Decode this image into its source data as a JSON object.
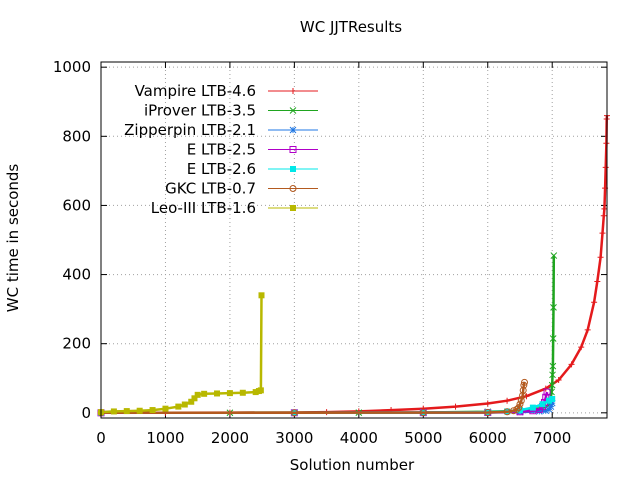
{
  "chart_data": {
    "type": "line",
    "title": "WC JJTResults",
    "xlabel": "Solution number",
    "ylabel": "WC time in seconds",
    "xlim": [
      0,
      7850
    ],
    "ylim": [
      -15,
      1015
    ],
    "xticks": [
      0,
      1000,
      2000,
      3000,
      4000,
      5000,
      6000,
      7000
    ],
    "yticks": [
      0,
      200,
      400,
      600,
      800,
      1000
    ],
    "grid": true,
    "legend_position": "top-left",
    "series": [
      {
        "name": "Vampire LTB-4.6",
        "color": "#e41a1c",
        "marker": "plus",
        "points": [
          [
            0,
            0
          ],
          [
            1000,
            0.2
          ],
          [
            2000,
            0.5
          ],
          [
            3000,
            1
          ],
          [
            3500,
            2
          ],
          [
            4000,
            4
          ],
          [
            4500,
            8
          ],
          [
            5000,
            12
          ],
          [
            5500,
            18
          ],
          [
            6000,
            27
          ],
          [
            6300,
            35
          ],
          [
            6600,
            48
          ],
          [
            6900,
            70
          ],
          [
            7100,
            95
          ],
          [
            7300,
            140
          ],
          [
            7450,
            190
          ],
          [
            7550,
            240
          ],
          [
            7650,
            320
          ],
          [
            7700,
            380
          ],
          [
            7750,
            450
          ],
          [
            7780,
            520
          ],
          [
            7800,
            570
          ],
          [
            7810,
            590
          ],
          [
            7820,
            650
          ],
          [
            7830,
            710
          ],
          [
            7840,
            780
          ],
          [
            7845,
            850
          ],
          [
            7850,
            860
          ]
        ]
      },
      {
        "name": "iProver LTB-3.5",
        "color": "#1fa51f",
        "marker": "x",
        "points": [
          [
            0,
            0
          ],
          [
            2000,
            0.2
          ],
          [
            4000,
            0.5
          ],
          [
            5000,
            1
          ],
          [
            6000,
            3
          ],
          [
            6500,
            6
          ],
          [
            6800,
            12
          ],
          [
            6900,
            18
          ],
          [
            6950,
            25
          ],
          [
            6970,
            35
          ],
          [
            6990,
            60
          ],
          [
            7000,
            80
          ],
          [
            7005,
            110
          ],
          [
            7010,
            135
          ],
          [
            7015,
            215
          ],
          [
            7020,
            305
          ],
          [
            7025,
            455
          ]
        ]
      },
      {
        "name": "Zipperpin LTB-2.1",
        "color": "#1f77e4",
        "marker": "star",
        "points": [
          [
            0,
            0
          ],
          [
            3000,
            0.2
          ],
          [
            5000,
            0.5
          ],
          [
            6000,
            1
          ],
          [
            6500,
            2
          ],
          [
            6800,
            4
          ],
          [
            6900,
            6
          ],
          [
            6950,
            10
          ],
          [
            6980,
            18
          ],
          [
            7000,
            28
          ]
        ]
      },
      {
        "name": "E LTB-2.5",
        "color": "#b000c8",
        "marker": "square-open",
        "points": [
          [
            0,
            0
          ],
          [
            3000,
            0.2
          ],
          [
            5000,
            0.5
          ],
          [
            6000,
            1
          ],
          [
            6500,
            3
          ],
          [
            6700,
            6
          ],
          [
            6800,
            10
          ],
          [
            6850,
            18
          ],
          [
            6880,
            30
          ],
          [
            6900,
            45
          ],
          [
            6920,
            60
          ]
        ]
      },
      {
        "name": "E LTB-2.6",
        "color": "#00e8e8",
        "marker": "square-filled",
        "points": [
          [
            0,
            0
          ],
          [
            3000,
            0.2
          ],
          [
            5000,
            0.5
          ],
          [
            6000,
            1.5
          ],
          [
            6300,
            4
          ],
          [
            6500,
            8
          ],
          [
            6700,
            15
          ],
          [
            6850,
            25
          ],
          [
            6950,
            35
          ],
          [
            7000,
            40
          ]
        ]
      },
      {
        "name": "GKC LTB-0.7",
        "color": "#b35a1f",
        "marker": "circle-open",
        "points": [
          [
            0,
            0
          ],
          [
            3000,
            0.2
          ],
          [
            5000,
            0.5
          ],
          [
            6000,
            1
          ],
          [
            6300,
            3
          ],
          [
            6400,
            6
          ],
          [
            6450,
            10
          ],
          [
            6480,
            15
          ],
          [
            6500,
            25
          ],
          [
            6520,
            35
          ],
          [
            6540,
            50
          ],
          [
            6550,
            65
          ],
          [
            6560,
            80
          ],
          [
            6570,
            88
          ]
        ]
      },
      {
        "name": "Leo-III LTB-1.6",
        "color": "#b8b800",
        "marker": "square-filled",
        "points": [
          [
            0,
            2
          ],
          [
            200,
            4
          ],
          [
            400,
            5
          ],
          [
            600,
            6
          ],
          [
            800,
            8
          ],
          [
            1000,
            12
          ],
          [
            1200,
            18
          ],
          [
            1300,
            24
          ],
          [
            1400,
            32
          ],
          [
            1450,
            42
          ],
          [
            1500,
            52
          ],
          [
            1600,
            55
          ],
          [
            1800,
            56
          ],
          [
            2000,
            57
          ],
          [
            2200,
            58
          ],
          [
            2400,
            60
          ],
          [
            2450,
            63
          ],
          [
            2480,
            65
          ],
          [
            2490,
            340
          ]
        ]
      }
    ]
  }
}
